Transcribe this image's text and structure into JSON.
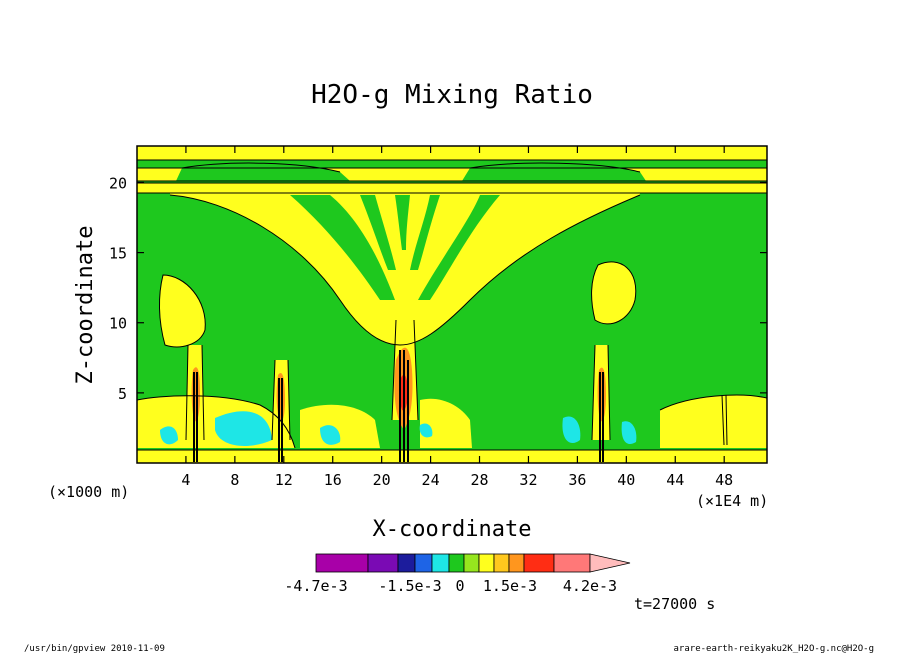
{
  "chart_data": {
    "type": "heatmap",
    "title": "H2O-g Mixing Ratio",
    "xlabel": "X-coordinate",
    "ylabel": "Z-coordinate",
    "x_unit_left": "(×1000 m)",
    "x_unit_right": "(×1E4 m)",
    "time_label": "t=27000 s",
    "x_range": [
      0,
      51.5
    ],
    "y_range": [
      0,
      22.6
    ],
    "x_ticks": [
      "4",
      "8",
      "12",
      "16",
      "20",
      "24",
      "28",
      "32",
      "36",
      "40",
      "44",
      "48"
    ],
    "y_ticks": [
      "5",
      "10",
      "15",
      "20"
    ],
    "colorbar": {
      "colors": [
        "#a800a8",
        "#7a0ab4",
        "#1c1c9c",
        "#1e64e6",
        "#1ee6e6",
        "#1ec81e",
        "#96e61e",
        "#ffff1e",
        "#ffc81e",
        "#ff961e",
        "#ff2d14",
        "#ff7878",
        "#ffbcbc"
      ],
      "labels": [
        "-4.7e-3",
        "-1.5e-3",
        "0",
        "1.5e-3",
        "4.2e-3"
      ]
    },
    "fields": {
      "background": "#1ec81e",
      "positive": "#ffff1e",
      "negative": "#1ee6e6",
      "strong_positive": "#ff961e",
      "peak": "#ff2d14"
    }
  },
  "footer": {
    "left": "/usr/bin/gpview 2010-11-09",
    "right": "arare-earth-reikyaku2K_H2O-g.nc@H2O-g"
  }
}
